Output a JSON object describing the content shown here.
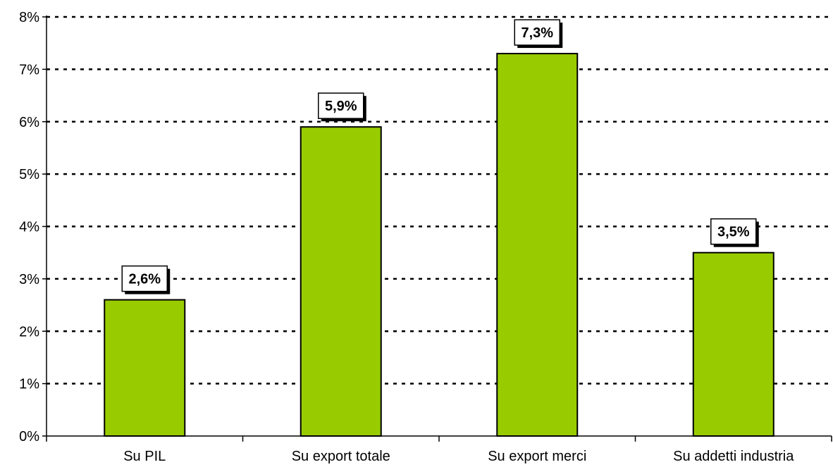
{
  "chart_data": {
    "type": "bar",
    "categories": [
      "Su PIL",
      "Su export totale",
      "Su export merci",
      "Su addetti industria"
    ],
    "values": [
      2.6,
      5.9,
      7.3,
      3.5
    ],
    "value_labels": [
      "2,6%",
      "5,9%",
      "7,3%",
      "3,5%"
    ],
    "y_ticks": [
      "0%",
      "1%",
      "2%",
      "3%",
      "4%",
      "5%",
      "6%",
      "7%",
      "8%"
    ],
    "ylim": [
      0,
      8
    ],
    "grid": "dashed horizontal",
    "bar_color": "#99CC00",
    "legend": "none"
  }
}
